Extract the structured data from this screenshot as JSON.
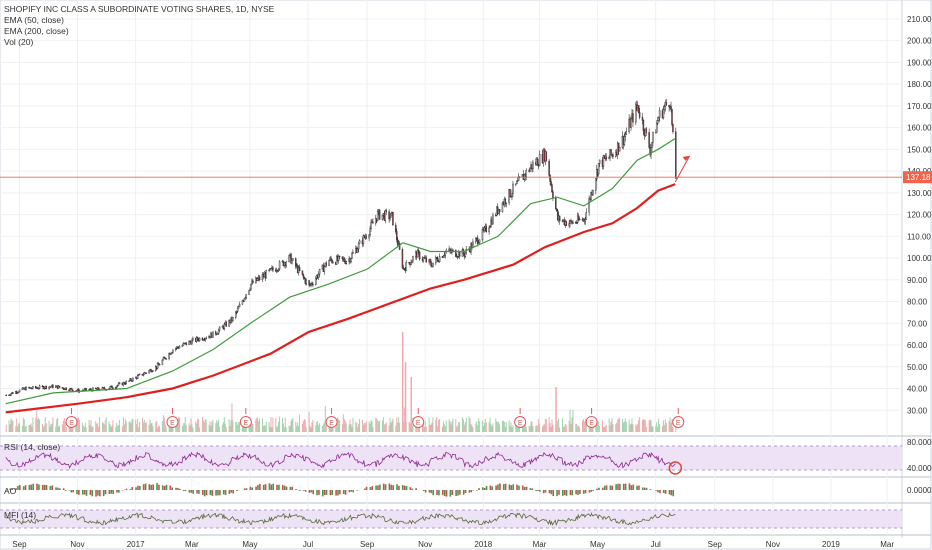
{
  "chart_data": {
    "type": "candlestick",
    "title": "SHOPIFY INC CLASS A SUBORDINATE VOTING SHARES, 1D, NYSE",
    "legend": [
      "EMA (50, close)",
      "EMA (200, close)",
      "Vol (20)"
    ],
    "price_axis": {
      "ticks": [
        "210.00",
        "200.00",
        "190.00",
        "180.00",
        "170.00",
        "160.00",
        "150.00",
        "140.00",
        "130.00",
        "120.00",
        "110.00",
        "100.00",
        "90.00",
        "80.00",
        "70.00",
        "60.00",
        "50.00",
        "40.00",
        "30.00"
      ],
      "range": [
        20,
        215
      ]
    },
    "last_price": "137.18",
    "time_axis": [
      "Sep",
      "Nov",
      "2017",
      "Mar",
      "May",
      "Jul",
      "Sep",
      "Nov",
      "2018",
      "Mar",
      "May",
      "Jul",
      "Sep",
      "Nov",
      "2019",
      "Mar"
    ],
    "close": {
      "points": [
        [
          "2016-08-26",
          37
        ],
        [
          "2016-09-15",
          40
        ],
        [
          "2016-10-15",
          41
        ],
        [
          "2016-11-10",
          39
        ],
        [
          "2016-12-10",
          40
        ],
        [
          "2016-12-31",
          43
        ],
        [
          "2017-01-31",
          50
        ],
        [
          "2017-02-17",
          58
        ],
        [
          "2017-03-10",
          62
        ],
        [
          "2017-04-01",
          65
        ],
        [
          "2017-04-21",
          72
        ],
        [
          "2017-05-10",
          88
        ],
        [
          "2017-05-31",
          94
        ],
        [
          "2017-06-20",
          100
        ],
        [
          "2017-07-10",
          87
        ],
        [
          "2017-07-31",
          99
        ],
        [
          "2017-08-20",
          99
        ],
        [
          "2017-09-10",
          112
        ],
        [
          "2017-09-20",
          120
        ],
        [
          "2017-10-05",
          119
        ],
        [
          "2017-10-17",
          95
        ],
        [
          "2017-10-31",
          102
        ],
        [
          "2017-11-15",
          97
        ],
        [
          "2017-11-30",
          103
        ],
        [
          "2017-12-20",
          102
        ],
        [
          "2018-01-10",
          112
        ],
        [
          "2018-01-25",
          123
        ],
        [
          "2018-02-10",
          132
        ],
        [
          "2018-02-28",
          142
        ],
        [
          "2018-03-15",
          148
        ],
        [
          "2018-03-28",
          118
        ],
        [
          "2018-04-10",
          116
        ],
        [
          "2018-04-25",
          118
        ],
        [
          "2018-05-10",
          143
        ],
        [
          "2018-05-25",
          148
        ],
        [
          "2018-06-05",
          155
        ],
        [
          "2018-06-20",
          170
        ],
        [
          "2018-07-03",
          150
        ],
        [
          "2018-07-12",
          165
        ],
        [
          "2018-07-24",
          173
        ],
        [
          "2018-07-30",
          137
        ]
      ]
    },
    "ema50": {
      "points": [
        [
          "2016-08-26",
          33
        ],
        [
          "2016-10-15",
          38
        ],
        [
          "2016-12-31",
          40
        ],
        [
          "2017-02-17",
          48
        ],
        [
          "2017-04-01",
          58
        ],
        [
          "2017-05-10",
          70
        ],
        [
          "2017-06-20",
          82
        ],
        [
          "2017-07-31",
          88
        ],
        [
          "2017-09-10",
          95
        ],
        [
          "2017-10-17",
          107
        ],
        [
          "2017-11-15",
          103
        ],
        [
          "2017-12-20",
          103
        ],
        [
          "2018-01-25",
          110
        ],
        [
          "2018-02-28",
          125
        ],
        [
          "2018-03-28",
          128
        ],
        [
          "2018-04-25",
          124
        ],
        [
          "2018-05-25",
          132
        ],
        [
          "2018-06-20",
          145
        ],
        [
          "2018-07-12",
          150
        ],
        [
          "2018-07-30",
          155
        ]
      ]
    },
    "ema200": {
      "points": [
        [
          "2016-08-26",
          29
        ],
        [
          "2016-11-10",
          33
        ],
        [
          "2016-12-31",
          36
        ],
        [
          "2017-02-17",
          40
        ],
        [
          "2017-04-01",
          46
        ],
        [
          "2017-05-31",
          56
        ],
        [
          "2017-07-10",
          66
        ],
        [
          "2017-08-20",
          72
        ],
        [
          "2017-09-20",
          77
        ],
        [
          "2017-11-15",
          86
        ],
        [
          "2017-12-20",
          90
        ],
        [
          "2018-02-10",
          97
        ],
        [
          "2018-03-15",
          105
        ],
        [
          "2018-04-25",
          112
        ],
        [
          "2018-05-25",
          116
        ],
        [
          "2018-06-20",
          123
        ],
        [
          "2018-07-12",
          131
        ],
        [
          "2018-07-30",
          134
        ]
      ]
    },
    "earnings_markers": [
      "E",
      "E",
      "E",
      "E",
      "E",
      "E",
      "E",
      "E",
      "E"
    ],
    "rsi": {
      "label": "RSI (14, close)",
      "axis_ticks": [
        "80.0000",
        "40.0000"
      ]
    },
    "ao": {
      "label": "AO",
      "axis_ticks": [
        "0.0000"
      ]
    },
    "mfi": {
      "label": "MFI (14)"
    },
    "colors": {
      "up": "#2f8f4e",
      "down": "#b0333b",
      "ema50": "#3f9a3f",
      "ema200": "#e01e1e",
      "last_price_line": "#f2644a",
      "rsi_line": "#8e2b8e",
      "band_fill": "#eee2f6"
    }
  }
}
